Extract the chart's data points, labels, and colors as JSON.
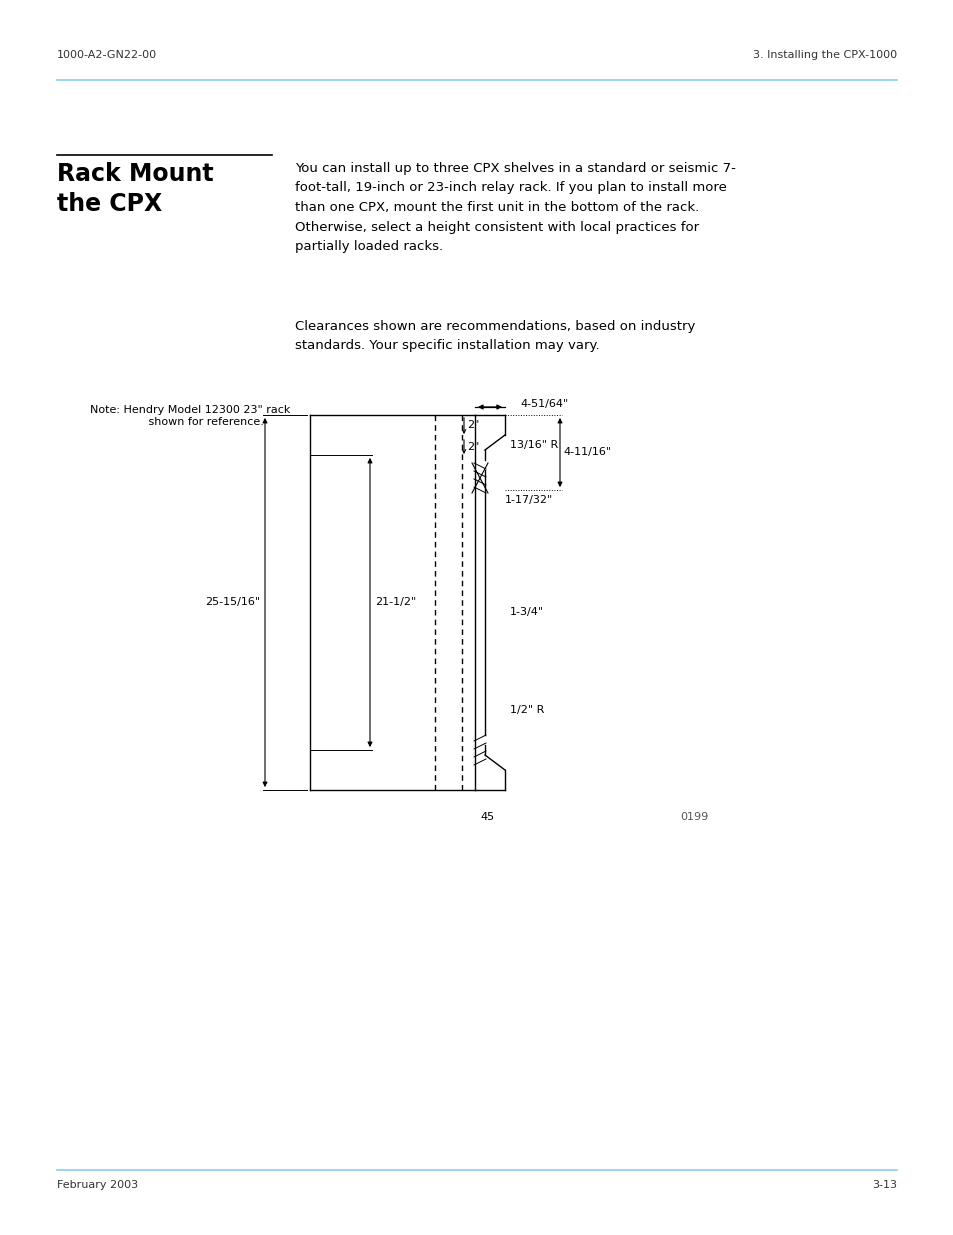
{
  "header_left": "1000-A2-GN22-00",
  "header_right": "3. Installing the CPX-1000",
  "footer_left": "February 2003",
  "footer_right": "3-13",
  "section_title": "Rack Mount\nthe CPX",
  "body_text_1": "You can install up to three CPX shelves in a standard or seismic 7-\nfoot-tall, 19-inch or 23-inch relay rack. If you plan to install more\nthan one CPX, mount the first unit in the bottom of the rack.\nOtherwise, select a height consistent with local practices for\npartially loaded racks.",
  "body_text_2": "Clearances shown are recommendations, based on industry\nstandards. Your specific installation may vary.",
  "note_text": "Note: Hendry Model 12300 23\" rack\n         shown for reference.",
  "diagram_labels": {
    "top_width": "4-51/64\"",
    "dim_2a": "2\"",
    "dim_2b": "2\"",
    "radius_top": "13/16\" R",
    "dim_4_11_16": "4-11/16\"",
    "dim_1_17_32": "1-17/32\"",
    "dim_21_half": "21-1/2\"",
    "dim_25_15_16": "25-15/16\"",
    "dim_1_3_4": "1-3/4\"",
    "radius_bot": "1/2\" R",
    "dim_45": "45",
    "dim_0199": "0199"
  },
  "bg_color": "#ffffff",
  "text_color": "#000000",
  "line_color": "#000000",
  "header_line_color": "#87CEEB",
  "section_title_color": "#000000"
}
